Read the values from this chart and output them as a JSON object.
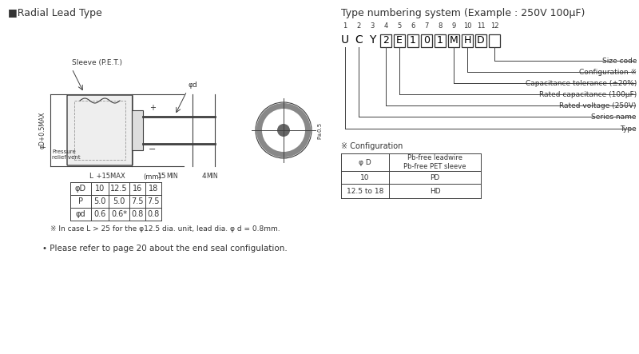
{
  "bg_color": "#ffffff",
  "title_left": "■Radial Lead Type",
  "title_right": "Type numbering system (Example : 250V 100μF)",
  "type_chars": [
    "U",
    "C",
    "Y",
    "2",
    "E",
    "1",
    "0",
    "1",
    "M",
    "H",
    "D",
    ""
  ],
  "type_positions": [
    1,
    2,
    3,
    4,
    5,
    6,
    7,
    8,
    9,
    10,
    11,
    12
  ],
  "labels_right": [
    "Size code",
    "Configuration ※",
    "Capacitance tolerance (±20%)",
    "Rated capacitance (100μF)",
    "Rated voltage (250V)",
    "Series name",
    "Type"
  ],
  "table_header": "(mm)",
  "table_rows": [
    [
      "φD",
      "10",
      "12.5",
      "16",
      "18"
    ],
    [
      "P",
      "5.0",
      "5.0",
      "7.5",
      "7.5"
    ],
    [
      "φd",
      "0.6",
      "0.6*",
      "0.8",
      "0.8"
    ]
  ],
  "note1": "※ In case L > 25 for the φ12.5 dia. unit, lead dia. φ d = 0.8mm.",
  "note2": "• Please refer to page 20 about the end seal configulation.",
  "config_title": "※ Configuration",
  "config_col_headers": [
    "φ D",
    "Pb-free leadwire\nPb-free PET sleeve"
  ],
  "config_table_rows": [
    [
      "10",
      "PD"
    ],
    [
      "12.5 to 18",
      "HD"
    ]
  ]
}
